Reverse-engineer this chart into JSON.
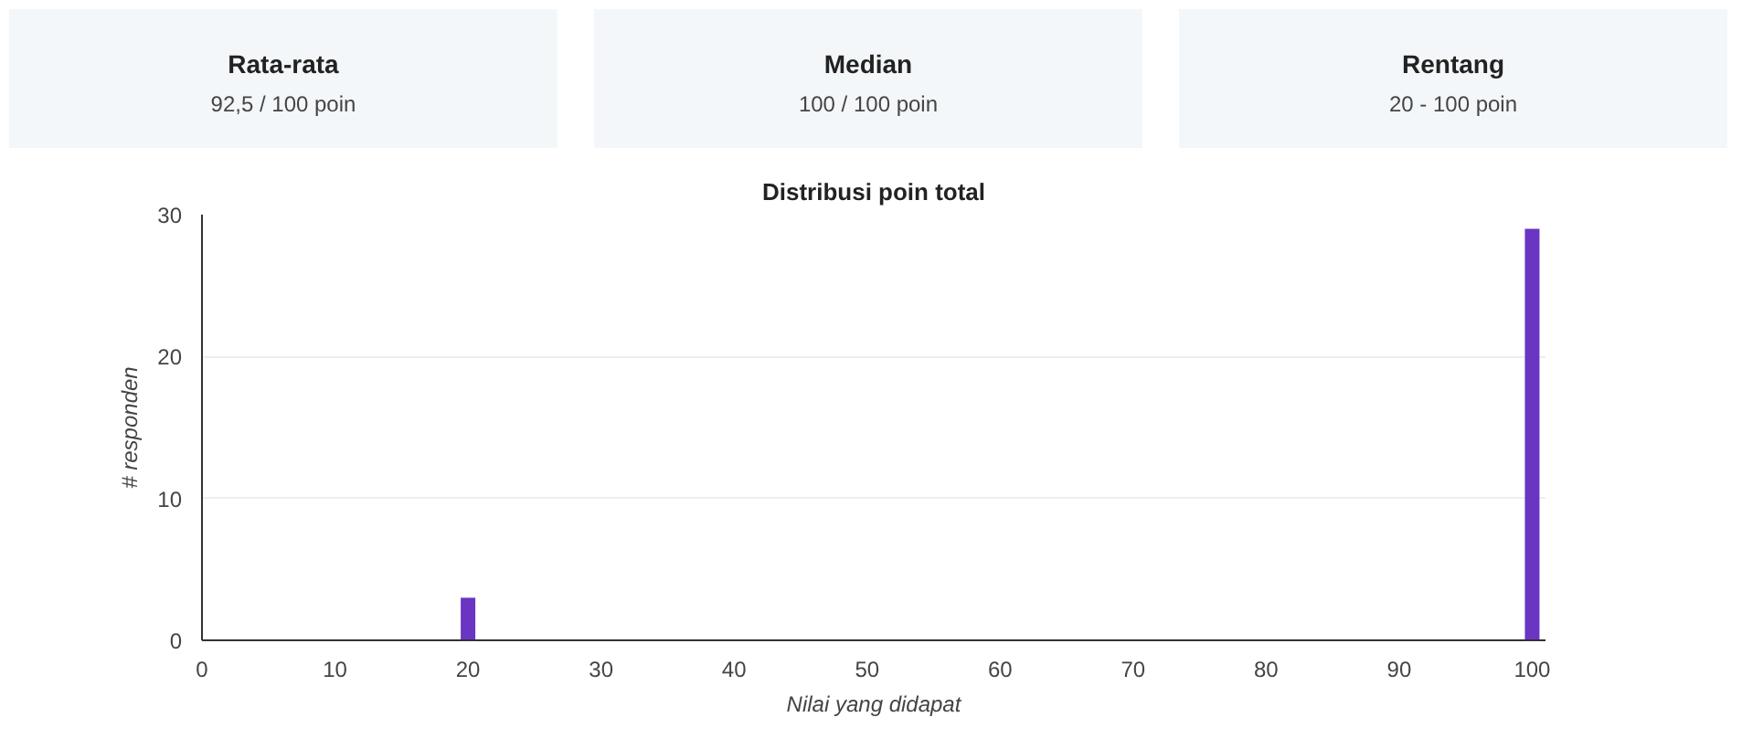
{
  "chart_data": [
    {
      "type": "other",
      "title": "Rata-rata",
      "subtitle": "92,5 / 100 poin"
    },
    {
      "type": "other",
      "title": "Median",
      "subtitle": "100 / 100 poin"
    },
    {
      "type": "other",
      "title": "Rentang",
      "subtitle": "20 - 100 poin"
    },
    {
      "type": "bar",
      "title": "Distribusi poin total",
      "xlabel": "Nilai yang didapat",
      "ylabel": "# responden",
      "x": [
        20,
        100
      ],
      "values": [
        3,
        29
      ],
      "color": "#6a35c2",
      "xlim": [
        0,
        101
      ],
      "xticks": [
        0,
        10,
        20,
        30,
        40,
        50,
        60,
        70,
        80,
        90,
        100
      ],
      "ylim": [
        0,
        30
      ],
      "yticks": [
        0,
        10,
        20,
        30
      ],
      "grid": "y"
    }
  ]
}
